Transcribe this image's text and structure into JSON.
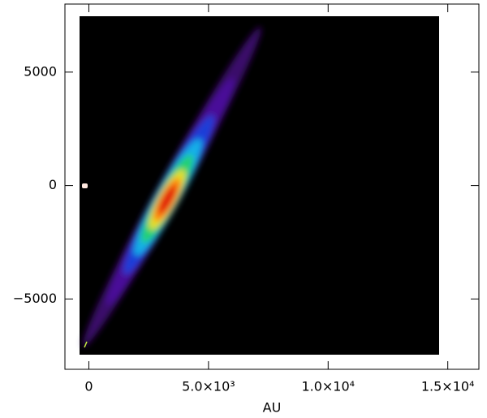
{
  "chart_data": {
    "type": "image",
    "xlabel": "AU",
    "xlim": [
      -1000,
      16300
    ],
    "ylim": [
      -8100,
      8000
    ],
    "xticks": [
      0,
      {
        "value": 5000,
        "label": "5.0×10³"
      },
      {
        "value": 10000,
        "label": "1.0×10⁴"
      },
      {
        "value": 15000,
        "label": "1.5×10⁴"
      }
    ],
    "yticks": [
      {
        "value": -5000,
        "label": "−5000"
      },
      0,
      5000
    ]
  }
}
